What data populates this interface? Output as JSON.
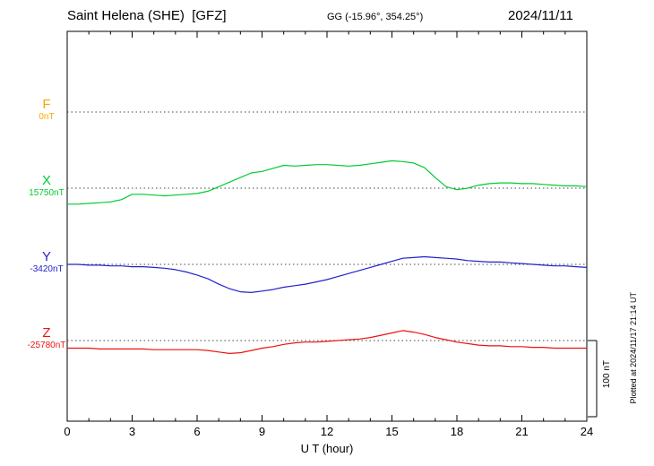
{
  "header": {
    "title": "Saint Helena (SHE)  [GFZ]",
    "coords": "GG (-15.96°, 354.25°)",
    "date": "2024/11/11"
  },
  "axes": {
    "xlabel": "U T (hour)",
    "x_ticks": [
      "0",
      "3",
      "6",
      "9",
      "12",
      "15",
      "18",
      "21",
      "24"
    ],
    "x_tick_hours": [
      0,
      3,
      6,
      9,
      12,
      15,
      18,
      21,
      24
    ]
  },
  "side": {
    "plotted_note": "Plotted at 2024/11/17 21:14 UT",
    "scale_label": "100 nT"
  },
  "chart_data": {
    "type": "line",
    "title": "Saint Helena (SHE) [GFZ] magnetogram 2024/11/11",
    "xlabel": "U T (hour)",
    "x_range_hours": [
      0,
      24
    ],
    "x_step_hours": 0.5,
    "scale_bar_nt": 100,
    "grid": "dotted horizontal baselines per channel",
    "legend_position": "left channel labels",
    "series": [
      {
        "name": "F",
        "baseline_label": "0nT",
        "baseline_nt": 0,
        "color": "#ffa500",
        "offsets_nt": []
      },
      {
        "name": "X",
        "baseline_label": "15750nT",
        "baseline_nt": 15750,
        "color": "#00cc33",
        "offsets_nt": [
          -21,
          -21,
          -20,
          -19,
          -18,
          -15,
          -8,
          -8,
          -9,
          -10,
          -9,
          -8,
          -7,
          -4,
          2,
          8,
          14,
          20,
          22,
          26,
          30,
          29,
          30,
          31,
          31,
          30,
          29,
          30,
          32,
          34,
          36,
          35,
          33,
          27,
          14,
          2,
          -2,
          0,
          4,
          6,
          7,
          7,
          6,
          6,
          5,
          4,
          3,
          3,
          2
        ]
      },
      {
        "name": "Y",
        "baseline_label": "-3420nT",
        "baseline_nt": -3420,
        "color": "#2222cc",
        "offsets_nt": [
          0,
          0,
          -1,
          -1,
          -2,
          -2,
          -3,
          -3,
          -4,
          -5,
          -7,
          -10,
          -14,
          -19,
          -26,
          -32,
          -36,
          -37,
          -35,
          -33,
          -30,
          -28,
          -26,
          -23,
          -20,
          -16,
          -12,
          -8,
          -4,
          0,
          4,
          8,
          9,
          10,
          9,
          8,
          7,
          5,
          4,
          3,
          3,
          2,
          1,
          0,
          -1,
          -2,
          -2,
          -3,
          -4
        ]
      },
      {
        "name": "Z",
        "baseline_label": "-25780nT",
        "baseline_nt": -25780,
        "color": "#ee1111",
        "offsets_nt": [
          -10,
          -10,
          -10,
          -11,
          -11,
          -11,
          -11,
          -11,
          -12,
          -12,
          -12,
          -12,
          -12,
          -13,
          -15,
          -17,
          -16,
          -13,
          -10,
          -8,
          -5,
          -3,
          -2,
          -2,
          -1,
          0,
          1,
          2,
          4,
          7,
          10,
          13,
          11,
          8,
          4,
          1,
          -2,
          -4,
          -6,
          -7,
          -7,
          -8,
          -8,
          -9,
          -9,
          -10,
          -10,
          -10,
          -10
        ]
      }
    ]
  }
}
